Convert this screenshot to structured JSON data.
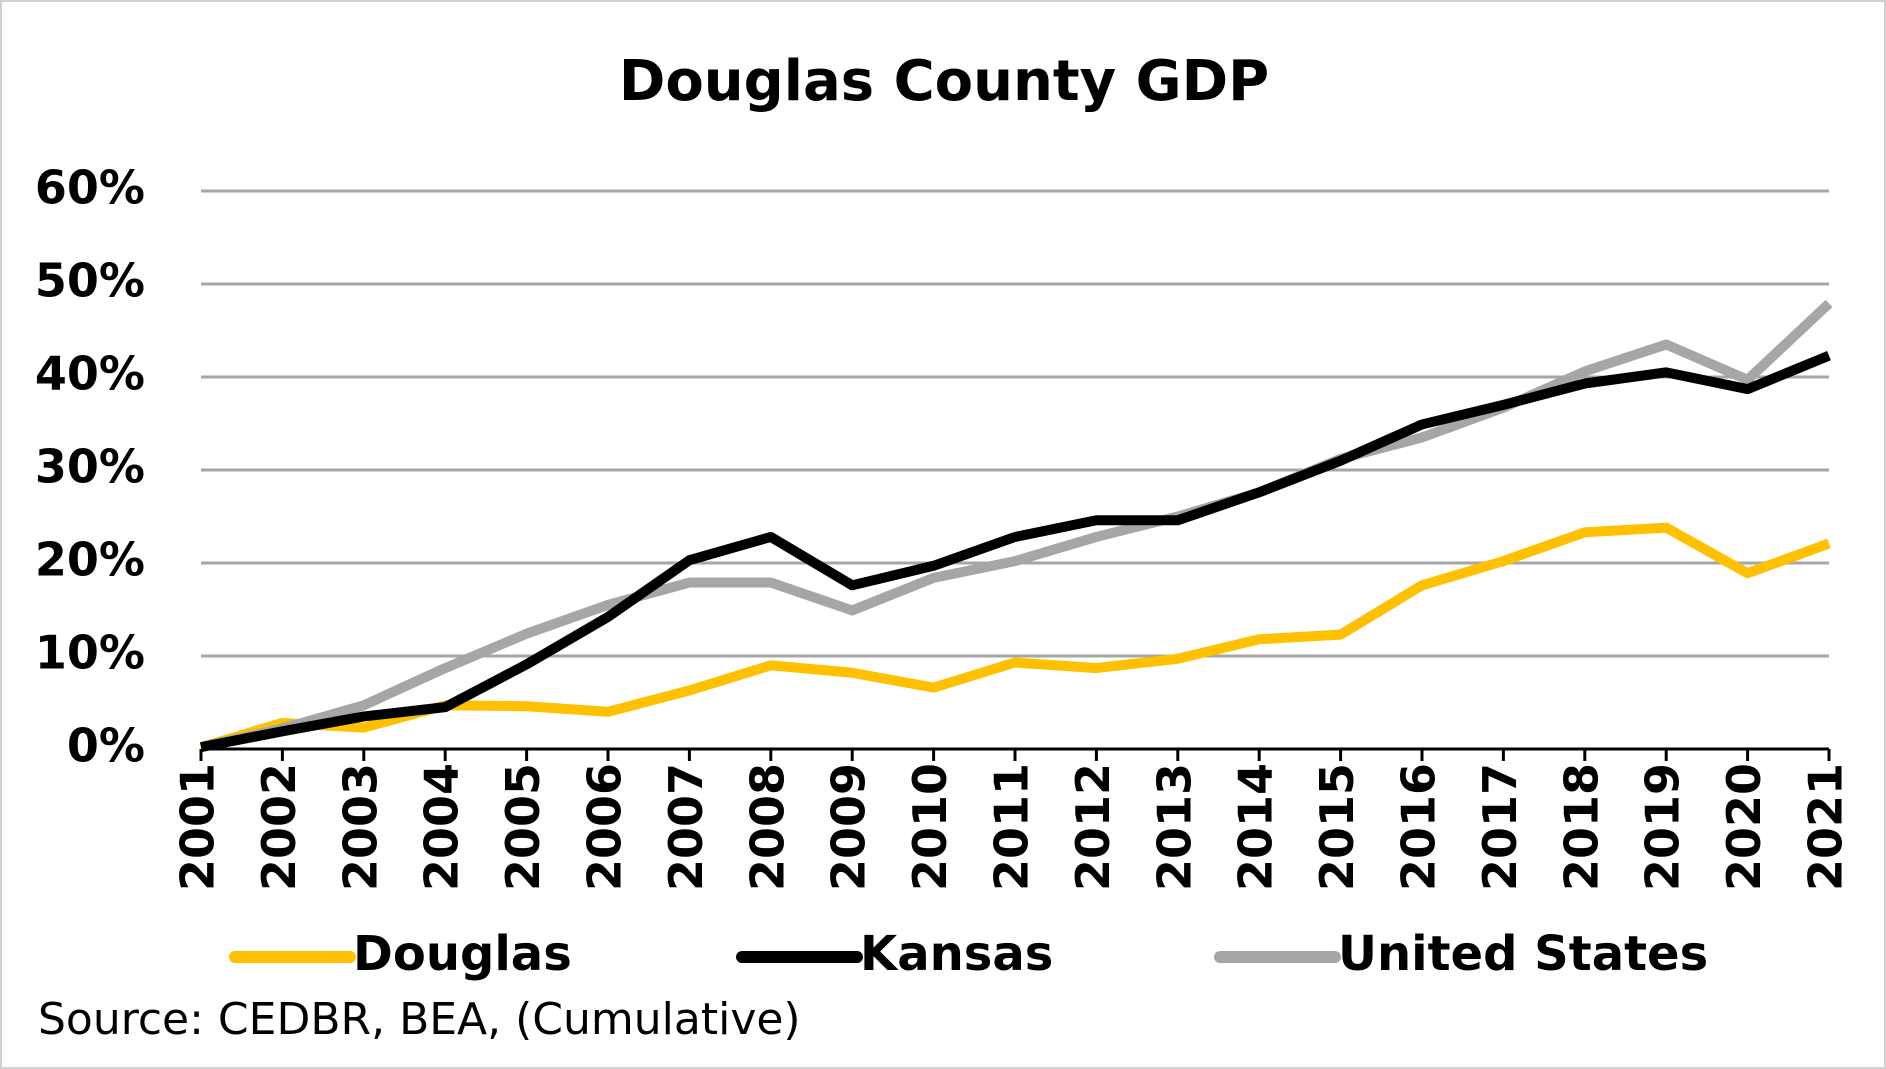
{
  "chart_data": {
    "type": "line",
    "title": "Douglas County GDP",
    "categories": [
      "2001",
      "2002",
      "2003",
      "2004",
      "2005",
      "2006",
      "2007",
      "2008",
      "2009",
      "2010",
      "2011",
      "2012",
      "2013",
      "2014",
      "2015",
      "2016",
      "2017",
      "2018",
      "2019",
      "2020",
      "2021"
    ],
    "series": [
      {
        "name": "Douglas",
        "color": "#ffc000",
        "values": [
          0.2,
          2.8,
          2.3,
          4.7,
          4.6,
          4.0,
          6.3,
          9.0,
          8.2,
          6.6,
          9.3,
          8.7,
          9.7,
          11.8,
          12.3,
          17.6,
          20.2,
          23.3,
          23.8,
          18.9,
          22.1
        ]
      },
      {
        "name": "Kansas",
        "color": "#000000",
        "values": [
          0.2,
          1.9,
          3.5,
          4.5,
          9.1,
          14.2,
          20.3,
          22.8,
          17.6,
          19.7,
          22.8,
          24.6,
          24.6,
          27.6,
          31.0,
          34.9,
          37.0,
          39.3,
          40.5,
          38.7,
          42.3
        ]
      },
      {
        "name": "United States",
        "color": "#a6a6a6",
        "values": [
          0.2,
          2.2,
          4.7,
          8.7,
          12.4,
          15.5,
          17.9,
          17.9,
          14.9,
          18.4,
          20.2,
          22.8,
          25.0,
          27.6,
          31.2,
          33.5,
          36.7,
          40.6,
          43.5,
          39.7,
          47.9
        ]
      }
    ],
    "ylim": [
      0,
      60
    ],
    "yticks": [
      {
        "value": 0,
        "label": "0%"
      },
      {
        "value": 10,
        "label": "10%"
      },
      {
        "value": 20,
        "label": "20%"
      },
      {
        "value": 30,
        "label": "30%"
      },
      {
        "value": 40,
        "label": "40%"
      },
      {
        "value": 50,
        "label": "50%"
      },
      {
        "value": 60,
        "label": "60%"
      }
    ],
    "grid": true,
    "legend": "bottom",
    "source": "Source: CEDBR, BEA, (Cumulative)"
  }
}
